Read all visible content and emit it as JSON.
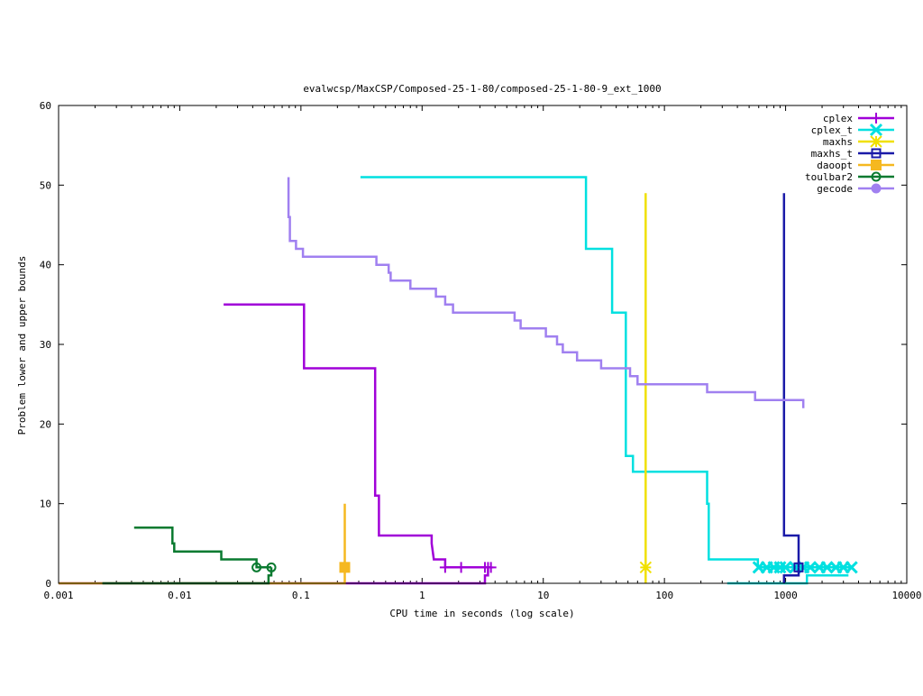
{
  "chart_data": {
    "type": "line",
    "title": "evalwcsp/MaxCSP/Composed-25-1-80/composed-25-1-80-9_ext_1000",
    "xlabel": "CPU time in seconds (log scale)",
    "ylabel": "Problem lower and upper bounds",
    "xscale": "log",
    "xlim": [
      0.001,
      10000
    ],
    "ylim": [
      0,
      60
    ],
    "xticks": [
      0.001,
      0.01,
      0.1,
      1,
      10,
      100,
      1000,
      10000
    ],
    "xtick_labels": [
      "0.001",
      "0.01",
      "0.1",
      "1",
      "10",
      "100",
      "1000",
      "10000"
    ],
    "yticks": [
      0,
      10,
      20,
      30,
      40,
      50,
      60
    ],
    "ytick_labels": [
      "0",
      "10",
      "20",
      "30",
      "40",
      "50",
      "60"
    ],
    "grid": false,
    "legend_position": "top-right",
    "series": [
      {
        "name": "cplex",
        "color": "#a000d8",
        "marker": "plus",
        "upper": [
          [
            0.023,
            35
          ],
          [
            0.106,
            35
          ],
          [
            0.106,
            27
          ],
          [
            0.41,
            27
          ],
          [
            0.41,
            11
          ],
          [
            0.44,
            11
          ],
          [
            0.44,
            6
          ],
          [
            1.2,
            6
          ],
          [
            1.2,
            5
          ],
          [
            1.25,
            3
          ],
          [
            1.55,
            3
          ],
          [
            1.55,
            2
          ],
          [
            3.7,
            2
          ]
        ],
        "lower": [
          [
            0.001,
            0
          ],
          [
            3.3,
            0
          ],
          [
            3.3,
            1
          ],
          [
            3.5,
            1
          ],
          [
            3.5,
            2
          ]
        ],
        "markers": [
          [
            1.55,
            2
          ],
          [
            2.1,
            2
          ],
          [
            3.3,
            2
          ],
          [
            3.5,
            2
          ],
          [
            3.7,
            2
          ]
        ]
      },
      {
        "name": "cplex_t",
        "color": "#00e0e0",
        "marker": "x",
        "upper": [
          [
            0.31,
            51
          ],
          [
            22.5,
            51
          ],
          [
            22.5,
            42
          ],
          [
            37,
            42
          ],
          [
            37,
            34
          ],
          [
            48,
            34
          ],
          [
            48,
            16
          ],
          [
            55,
            16
          ],
          [
            55,
            14
          ],
          [
            225,
            14
          ],
          [
            225,
            10
          ],
          [
            232,
            10
          ],
          [
            232,
            3
          ],
          [
            590,
            3
          ],
          [
            590,
            2
          ],
          [
            3500,
            2
          ]
        ],
        "lower": [
          [
            330,
            0
          ],
          [
            1500,
            0
          ],
          [
            1500,
            1
          ],
          [
            3300,
            1
          ]
        ],
        "markers": [
          [
            600,
            2
          ],
          [
            700,
            2
          ],
          [
            800,
            2
          ],
          [
            900,
            2
          ],
          [
            1000,
            2
          ],
          [
            1200,
            2
          ],
          [
            1400,
            2
          ],
          [
            1600,
            2
          ],
          [
            1900,
            2
          ],
          [
            2200,
            2
          ],
          [
            2600,
            2
          ],
          [
            3000,
            2
          ],
          [
            3500,
            2
          ]
        ]
      },
      {
        "name": "maxhs",
        "color": "#f0e000",
        "marker": "star",
        "upper": [
          [
            70,
            49
          ],
          [
            70,
            2
          ]
        ],
        "lower": [
          [
            70,
            0
          ],
          [
            70,
            2
          ]
        ],
        "markers": [
          [
            70,
            2
          ]
        ]
      },
      {
        "name": "maxhs_t",
        "color": "#1a1aa8",
        "marker": "square",
        "upper": [
          [
            970,
            49
          ],
          [
            970,
            6
          ],
          [
            1280,
            6
          ],
          [
            1280,
            2
          ]
        ],
        "lower": [
          [
            970,
            0
          ],
          [
            970,
            1
          ],
          [
            1280,
            1
          ],
          [
            1280,
            2
          ]
        ],
        "markers": [
          [
            1280,
            2
          ]
        ]
      },
      {
        "name": "daoopt",
        "color": "#f5b820",
        "marker": "filled-square",
        "upper": [
          [
            0.23,
            10
          ],
          [
            0.23,
            2
          ]
        ],
        "lower": [
          [
            0.001,
            0
          ],
          [
            0.23,
            0
          ],
          [
            0.23,
            2
          ]
        ],
        "markers": [
          [
            0.23,
            2
          ]
        ]
      },
      {
        "name": "toulbar2",
        "color": "#0a7a30",
        "marker": "circle",
        "upper": [
          [
            0.0042,
            7
          ],
          [
            0.0087,
            7
          ],
          [
            0.0087,
            5
          ],
          [
            0.009,
            5
          ],
          [
            0.009,
            4
          ],
          [
            0.022,
            4
          ],
          [
            0.022,
            3
          ],
          [
            0.043,
            3
          ],
          [
            0.043,
            2
          ],
          [
            0.057,
            2
          ]
        ],
        "lower": [
          [
            0.0023,
            0
          ],
          [
            0.054,
            0
          ],
          [
            0.054,
            1
          ],
          [
            0.057,
            1
          ],
          [
            0.057,
            2
          ]
        ],
        "markers": [
          [
            0.043,
            2
          ],
          [
            0.057,
            2
          ]
        ]
      },
      {
        "name": "gecode",
        "color": "#a080f0",
        "marker": "filled-circle",
        "upper": [
          [
            0.079,
            51
          ],
          [
            0.079,
            46
          ],
          [
            0.081,
            46
          ],
          [
            0.081,
            43
          ],
          [
            0.091,
            43
          ],
          [
            0.091,
            42
          ],
          [
            0.104,
            42
          ],
          [
            0.104,
            41
          ],
          [
            0.42,
            41
          ],
          [
            0.42,
            40
          ],
          [
            0.53,
            40
          ],
          [
            0.53,
            39
          ],
          [
            0.55,
            39
          ],
          [
            0.55,
            38
          ],
          [
            0.8,
            38
          ],
          [
            0.8,
            37
          ],
          [
            1.3,
            37
          ],
          [
            1.3,
            36
          ],
          [
            1.55,
            36
          ],
          [
            1.55,
            35
          ],
          [
            1.8,
            35
          ],
          [
            1.8,
            34
          ],
          [
            5.8,
            34
          ],
          [
            5.8,
            33
          ],
          [
            6.5,
            33
          ],
          [
            6.5,
            32
          ],
          [
            10.5,
            32
          ],
          [
            10.5,
            31
          ],
          [
            13,
            31
          ],
          [
            13,
            30
          ],
          [
            14.5,
            30
          ],
          [
            14.5,
            29
          ],
          [
            19,
            29
          ],
          [
            19,
            28
          ],
          [
            30,
            28
          ],
          [
            30,
            27
          ],
          [
            52,
            27
          ],
          [
            52,
            26
          ],
          [
            60,
            26
          ],
          [
            60,
            25
          ],
          [
            225,
            25
          ],
          [
            225,
            24
          ],
          [
            560,
            24
          ],
          [
            560,
            23
          ],
          [
            1400,
            23
          ],
          [
            1400,
            22
          ]
        ],
        "lower": [],
        "markers": []
      }
    ]
  }
}
